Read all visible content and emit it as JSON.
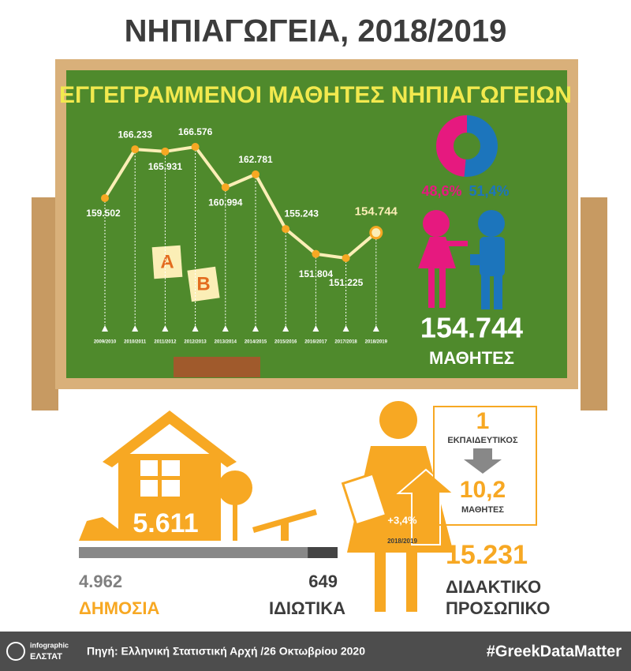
{
  "title": "ΝΗΠΙΑΓΩΓΕΙΑ, 2018/2019",
  "chart_data": [
    {
      "type": "line",
      "title": "ΕΓΓΕΓΡΑΜΜΕΝΟΙ ΜΑΘΗΤΕΣ ΝΗΠΙΑΓΩΓΕΙΩΝ",
      "categories": [
        "2009/2010",
        "2010/2011",
        "2011/2012",
        "2012/2013",
        "2013/2014",
        "2014/2015",
        "2015/2016",
        "2016/2017",
        "2017/2018",
        "2018/2019"
      ],
      "values": [
        159502,
        166233,
        165931,
        166576,
        160994,
        162781,
        155243,
        151804,
        151225,
        154744
      ],
      "value_labels": [
        "159.502",
        "166.233",
        "165.931",
        "166.576",
        "160.994",
        "162.781",
        "155.243",
        "151.804",
        "151.225",
        "154.744"
      ],
      "color": "#f7a823"
    },
    {
      "type": "pie",
      "values": [
        48.6,
        51.4
      ],
      "value_labels": [
        "48,6%",
        "51,4%"
      ],
      "colors": [
        "#e6197f",
        "#1c75bc"
      ]
    },
    {
      "type": "bar",
      "categories": [
        "ΔΗΜΟΣΙΑ",
        "ΙΔΙΩΤΙΚΑ"
      ],
      "values": [
        4962,
        649
      ],
      "value_labels": [
        "4.962",
        "649"
      ],
      "colors": [
        "#888888",
        "#444444"
      ],
      "total_label": "5.611"
    }
  ],
  "students": {
    "count": "154.744",
    "label": "ΜΑΘΗΤΕΣ"
  },
  "ratio": {
    "teachers": "1",
    "teacher_label": "ΕΚΠΑΙΔΕΥΤΙΚΟΣ",
    "students": "10,2",
    "student_label": "ΜΑΘΗΤΕΣ"
  },
  "staff": {
    "change": "+3,4%",
    "year": "2018/2019",
    "count": "15.231",
    "label_line1": "ΔΙΔΑΚΤΙΚΟ",
    "label_line2": "ΠΡΟΣΩΠΙΚΟ"
  },
  "footer": {
    "logo_top": "infographic",
    "logo_bottom": "ΕΛΣΤΑΤ",
    "source": "Πηγή: Ελληνική Στατιστική Αρχή /26 Οκτωβρίου 2020",
    "hashtag": "#GreekDataMatter"
  }
}
